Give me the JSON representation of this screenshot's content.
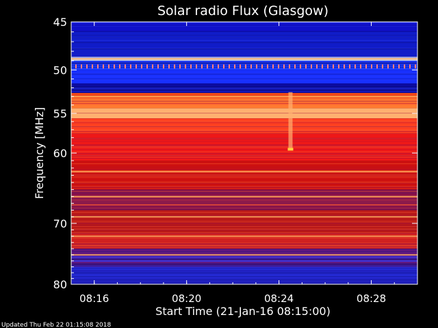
{
  "chart_data": {
    "type": "heatmap",
    "title": "Solar radio Flux (Glasgow)",
    "xlabel": "Start Time (21-Jan-16 08:15:00)",
    "ylabel": "Frequency [MHz]",
    "footer": "Updated Thu Feb 22 01:15:08 2018",
    "x_range_minutes": [
      0,
      15
    ],
    "x_ticks": [
      {
        "label": "08:16",
        "minute": 1
      },
      {
        "label": "08:20",
        "minute": 5
      },
      {
        "label": "08:24",
        "minute": 9
      },
      {
        "label": "08:28",
        "minute": 13
      }
    ],
    "y_axis_scale": "log",
    "y_range_mhz": [
      45,
      80
    ],
    "y_ticks": [
      45,
      50,
      55,
      60,
      70,
      80
    ],
    "spectrum_bands": [
      {
        "from": 45,
        "to": 46,
        "color": "#1010c8"
      },
      {
        "from": 46,
        "to": 48.6,
        "color": "#101cc8"
      },
      {
        "from": 48.6,
        "to": 49.0,
        "color": "#ffffe0"
      },
      {
        "from": 49.0,
        "to": 50.0,
        "color": "#1c3cff"
      },
      {
        "from": 50.0,
        "to": 51.5,
        "color": "#1830ff"
      },
      {
        "from": 51.5,
        "to": 52.6,
        "color": "#0c0ca0"
      },
      {
        "from": 52.6,
        "to": 53.2,
        "color": "#ff5010"
      },
      {
        "from": 53.2,
        "to": 54.4,
        "color": "#ff7a30"
      },
      {
        "from": 54.4,
        "to": 55.6,
        "color": "#ffb070"
      },
      {
        "from": 55.6,
        "to": 57.5,
        "color": "#ff4020"
      },
      {
        "from": 57.5,
        "to": 61.0,
        "color": "#ee1818"
      },
      {
        "from": 61.0,
        "to": 65.0,
        "color": "#cc1010"
      },
      {
        "from": 65.0,
        "to": 68.0,
        "color": "#7a1050"
      },
      {
        "from": 68.0,
        "to": 71.5,
        "color": "#b81818"
      },
      {
        "from": 71.5,
        "to": 74.0,
        "color": "#d02020"
      },
      {
        "from": 74.0,
        "to": 77.0,
        "color": "#601880"
      },
      {
        "from": 77.0,
        "to": 80.0,
        "color": "#2020c0"
      }
    ],
    "bright_lines_mhz": [
      48.8,
      53.0,
      62.5,
      66.0,
      69.0,
      72.0,
      75.0
    ],
    "burst_feature": {
      "minute": 9.5,
      "from_mhz": 52.5,
      "to_mhz": 59.5,
      "peak_mhz": 59.5
    }
  }
}
